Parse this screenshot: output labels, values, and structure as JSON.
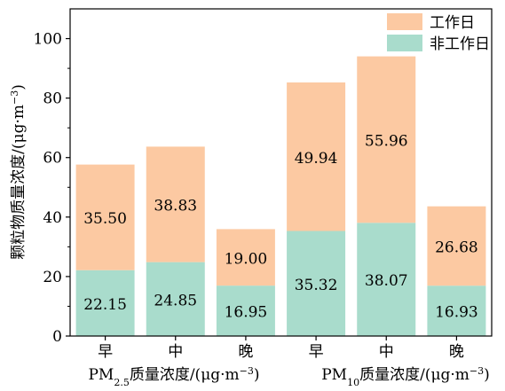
{
  "chart_data": {
    "type": "bar",
    "stacked": true,
    "categories": [
      "早",
      "中",
      "晚",
      "早",
      "中",
      "晚"
    ],
    "groups": [
      {
        "label_main": "PM",
        "label_sub": "2.5",
        "label_rest": "质量浓度/(μg·m",
        "label_sup": "−3",
        "label_end": ")",
        "span": [
          0,
          2
        ]
      },
      {
        "label_main": "PM",
        "label_sub": "10",
        "label_rest": "质量浓度/(μg·m",
        "label_sup": "−3",
        "label_end": ")",
        "span": [
          3,
          5
        ]
      }
    ],
    "series": [
      {
        "name": "非工作日",
        "color": "#a9dccc",
        "values": [
          22.15,
          24.85,
          16.95,
          35.32,
          38.07,
          16.93
        ]
      },
      {
        "name": "工作日",
        "color": "#fcc9a2",
        "values": [
          35.5,
          38.83,
          19.0,
          49.94,
          55.96,
          26.68
        ]
      }
    ],
    "value_labels": {
      "非工作日": [
        "22.15",
        "24.85",
        "16.95",
        "35.32",
        "38.07",
        "16.93"
      ],
      "工作日": [
        "35.50",
        "38.83",
        "19.00",
        "49.94",
        "55.96",
        "26.68"
      ]
    },
    "ylabel_main": "颗粒物质量浓度/(μg·m",
    "ylabel_sup": "−3",
    "ylabel_end": ")",
    "ylim": [
      0,
      110
    ],
    "yticks": [
      "0",
      "20",
      "40",
      "60",
      "80",
      "100"
    ],
    "ytick_values": [
      0,
      20,
      40,
      60,
      80,
      100
    ],
    "legend": {
      "position": "top-right",
      "entries": [
        "工作日",
        "非工作日"
      ]
    },
    "grid": false
  }
}
